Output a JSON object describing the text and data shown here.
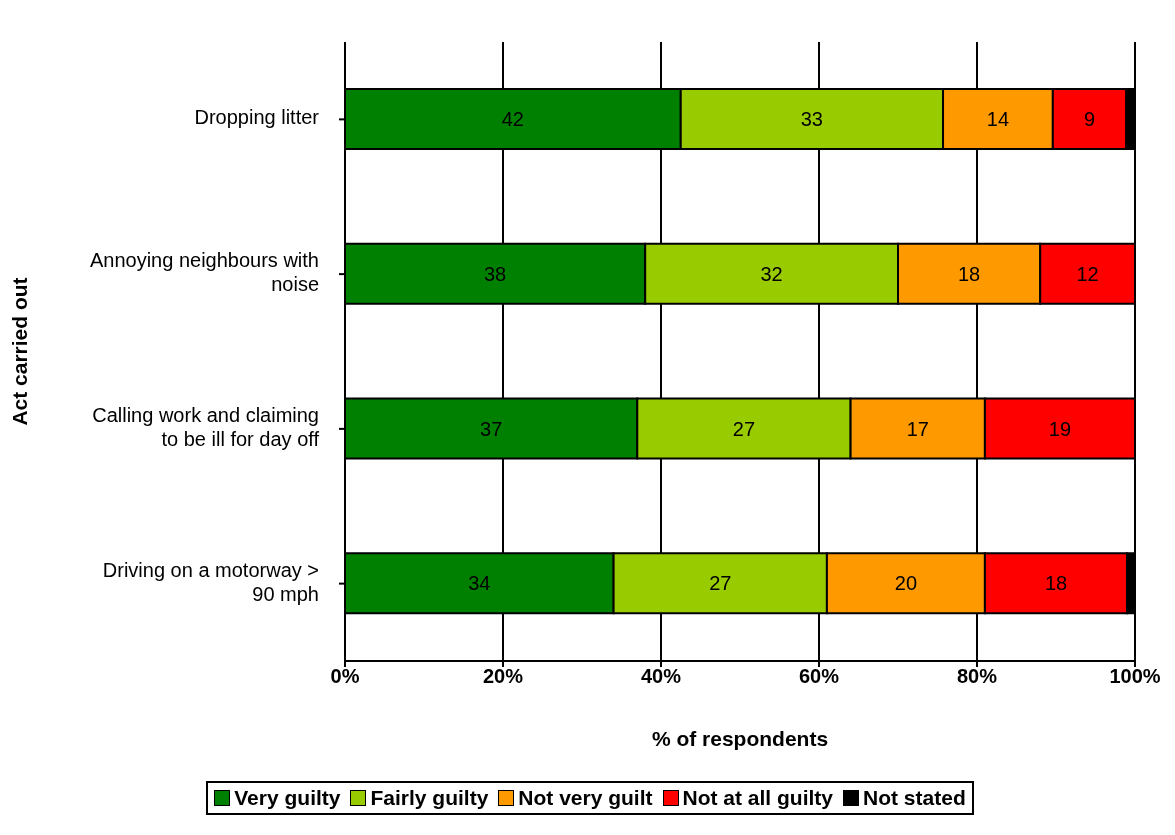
{
  "chart_data": {
    "type": "bar",
    "orientation": "horizontal",
    "stacked": true,
    "xlabel": "% of respondents",
    "ylabel": "Act carried out",
    "categories": [
      "Dropping litter",
      "Annoying neighbours with noise",
      "Calling work and claiming to be ill for day off",
      "Driving on a motorway > 90 mph"
    ],
    "series": [
      {
        "name": "Very guilty",
        "color": "#008000",
        "values": [
          42.5,
          38,
          37,
          34
        ],
        "value_labels": [
          "42",
          "38",
          "37",
          "34"
        ]
      },
      {
        "name": "Fairly guilty",
        "color": "#99cc00",
        "values": [
          33.2,
          32,
          27,
          27
        ],
        "value_labels": [
          "33",
          "32",
          "27",
          "27"
        ]
      },
      {
        "name": "Not very guilt",
        "color": "#ff9900",
        "values": [
          13.9,
          18,
          17,
          20
        ],
        "value_labels": [
          "14",
          "18",
          "17",
          "20"
        ]
      },
      {
        "name": "Not at all guilty",
        "color": "#ff0000",
        "values": [
          9.3,
          12,
          19,
          18
        ],
        "value_labels": [
          "9",
          "12",
          "19",
          "18"
        ]
      },
      {
        "name": "Not stated",
        "color": "#000000",
        "values": [
          1.1,
          0,
          0,
          1
        ],
        "value_labels": [
          null,
          null,
          null,
          null
        ]
      }
    ],
    "xlim": [
      0,
      100
    ],
    "xticks": [
      {
        "value": 0,
        "label": "0%"
      },
      {
        "value": 20,
        "label": "20%"
      },
      {
        "value": 40,
        "label": "40%"
      },
      {
        "value": 60,
        "label": "60%"
      },
      {
        "value": 80,
        "label": "80%"
      },
      {
        "value": 100,
        "label": "100%"
      }
    ],
    "grid": "x",
    "legend": "bottom"
  }
}
